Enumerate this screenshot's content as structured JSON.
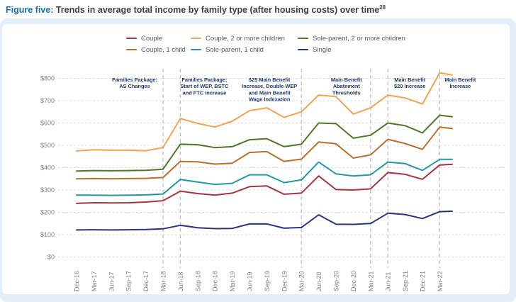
{
  "title": {
    "figure_label": "Figure five:",
    "text": " Trends in average total income by family type (after housing costs) over time",
    "superscript": "28"
  },
  "colors": {
    "figure_label_blue": "#1b6fae",
    "panel_border_blue": "#e3eef8",
    "gridline": "#d9d9d9",
    "event_line": "#c0c0c0",
    "tick_label": "#808080",
    "annotation_text": "#1f3864",
    "legend_text": "#595959"
  },
  "chart_data": {
    "type": "line",
    "title": "Trends in average total income by family type (after housing costs) over time",
    "xlabel": "",
    "ylabel": "",
    "ylim": [
      0,
      800
    ],
    "y_tick_step": 100,
    "y_tick_prefix": "$",
    "grid": "horizontal-dashed",
    "legend_position": "top",
    "categories": [
      "Dec-16",
      "Mar-17",
      "Jun-17",
      "Sep-17",
      "Dec-17",
      "Mar-18",
      "Jun-18",
      "Sep-18",
      "Dec-18",
      "Mar-19",
      "Jun-19",
      "Sep-19",
      "Dec-19",
      "Mar-20",
      "Jun-20",
      "Sep-20",
      "Dec-20",
      "Mar-21",
      "Jun-21",
      "Sep-21",
      "Dec-21",
      "Mar-22"
    ],
    "series": [
      {
        "name": "Couple",
        "color": "#A53540",
        "values": [
          240,
          243,
          242,
          243,
          246,
          252,
          295,
          284,
          277,
          286,
          315,
          318,
          281,
          286,
          363,
          302,
          300,
          305,
          378,
          370,
          348,
          412
        ],
        "tail_value": 415
      },
      {
        "name": "Couple, 2 or more children",
        "color": "#F2A351",
        "values": [
          475,
          480,
          478,
          478,
          476,
          490,
          620,
          598,
          582,
          608,
          655,
          668,
          625,
          650,
          725,
          718,
          640,
          668,
          725,
          712,
          685,
          825
        ],
        "tail_value": 815
      },
      {
        "name": "Sole-parent, 2 or more children",
        "color": "#4E7829",
        "values": [
          385,
          387,
          386,
          387,
          388,
          393,
          505,
          503,
          490,
          494,
          525,
          530,
          494,
          505,
          600,
          597,
          532,
          545,
          600,
          588,
          556,
          635
        ],
        "tail_value": 628
      },
      {
        "name": "Couple, 1 child",
        "color": "#BA6F2F",
        "values": [
          350,
          351,
          350,
          351,
          352,
          356,
          428,
          426,
          416,
          420,
          468,
          472,
          428,
          438,
          515,
          507,
          443,
          457,
          527,
          508,
          482,
          582
        ],
        "tail_value": 575
      },
      {
        "name": "Sole-parent, 1 child",
        "color": "#2596A8",
        "values": [
          277,
          277,
          276,
          277,
          278,
          282,
          347,
          336,
          325,
          330,
          368,
          368,
          333,
          345,
          425,
          372,
          363,
          368,
          425,
          418,
          388,
          437
        ],
        "tail_value": 437
      },
      {
        "name": "Single",
        "color": "#27357E",
        "values": [
          121,
          122,
          121,
          122,
          123,
          126,
          142,
          131,
          127,
          128,
          148,
          148,
          129,
          132,
          189,
          147,
          146,
          150,
          196,
          190,
          172,
          203
        ],
        "tail_value": 205
      }
    ],
    "event_lines": [
      {
        "category": "Mar-18",
        "label_lines": [
          "Families Package:",
          "AS Changes"
        ],
        "label_dx": -40
      },
      {
        "category": "Jun-18",
        "label_lines": [
          "Families Package:",
          "Start of WEP, BSTC",
          "and FTC increase"
        ],
        "label_dx": 34
      },
      {
        "category": "Mar-20",
        "label_lines": [
          "$25 Main Benefit",
          "Increase, Double WEP",
          "and Main Benefit",
          "Wage Indexation"
        ],
        "label_dx": -45
      },
      {
        "category": "Mar-21",
        "label_lines": [
          "Main Benefit",
          "Abatement",
          "Thresholds"
        ],
        "label_dx": -34
      },
      {
        "category": "Jun-21",
        "label_lines": [
          "Main Benefit",
          "$20 Increase"
        ],
        "label_dx": 31
      },
      {
        "category": "Mar-22",
        "label_lines": [
          "Main Benefit",
          "Increase"
        ],
        "label_dx": 29
      }
    ]
  }
}
